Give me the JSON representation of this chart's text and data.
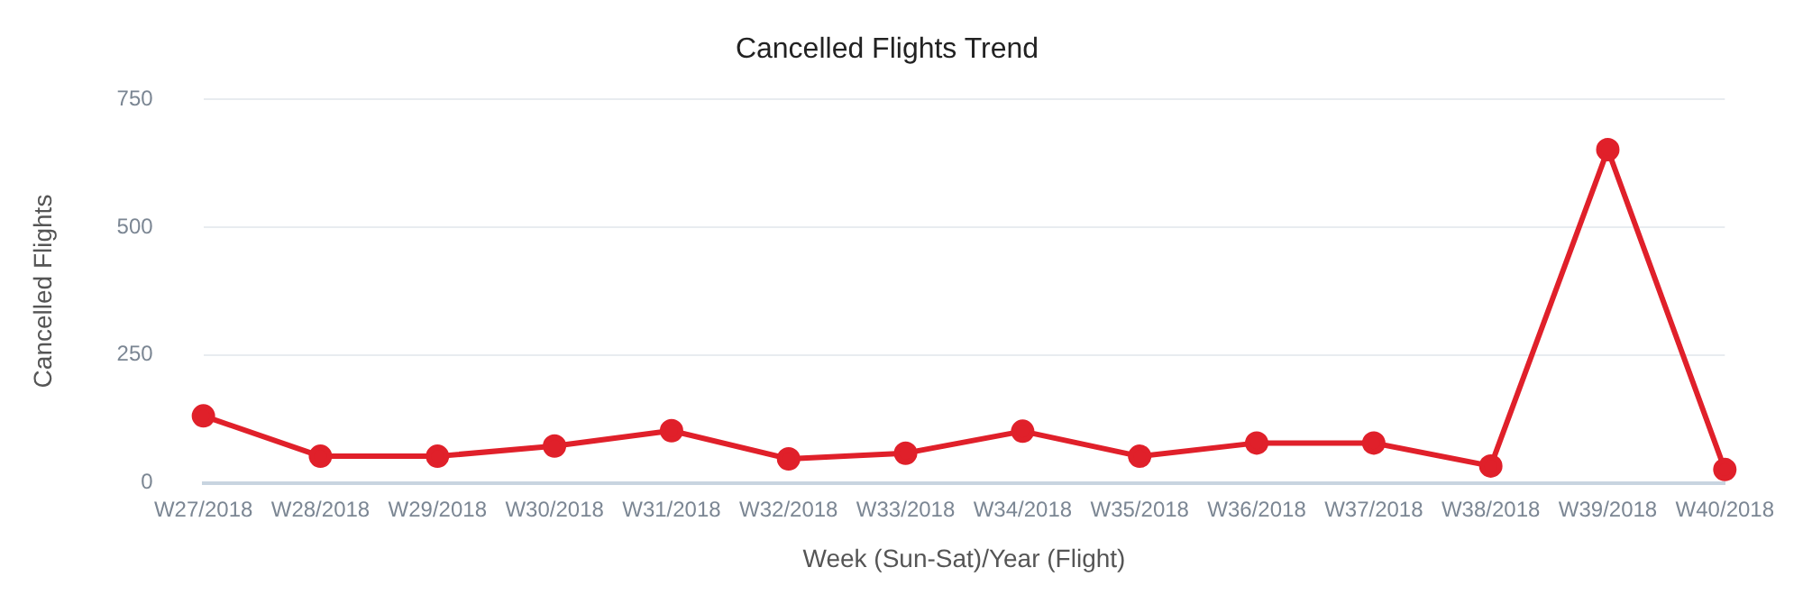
{
  "chart_data": {
    "type": "line",
    "title": "Cancelled Flights Trend",
    "xlabel": "Week (Sun-Sat)/Year (Flight)",
    "ylabel": "Cancelled Flights",
    "categories": [
      "W27/2018",
      "W28/2018",
      "W29/2018",
      "W30/2018",
      "W31/2018",
      "W32/2018",
      "W33/2018",
      "W34/2018",
      "W35/2018",
      "W36/2018",
      "W37/2018",
      "W38/2018",
      "W39/2018",
      "W40/2018"
    ],
    "series": [
      {
        "color": "#e0202a",
        "values": [
          131,
          52,
          52,
          72,
          102,
          47,
          58,
          101,
          52,
          78,
          78,
          33,
          652,
          26
        ]
      }
    ],
    "ylim": [
      0,
      750
    ],
    "yticks": [
      0,
      250,
      500,
      750
    ],
    "grid": "y",
    "legend": false,
    "marker": "circle",
    "line_style": "solid"
  }
}
